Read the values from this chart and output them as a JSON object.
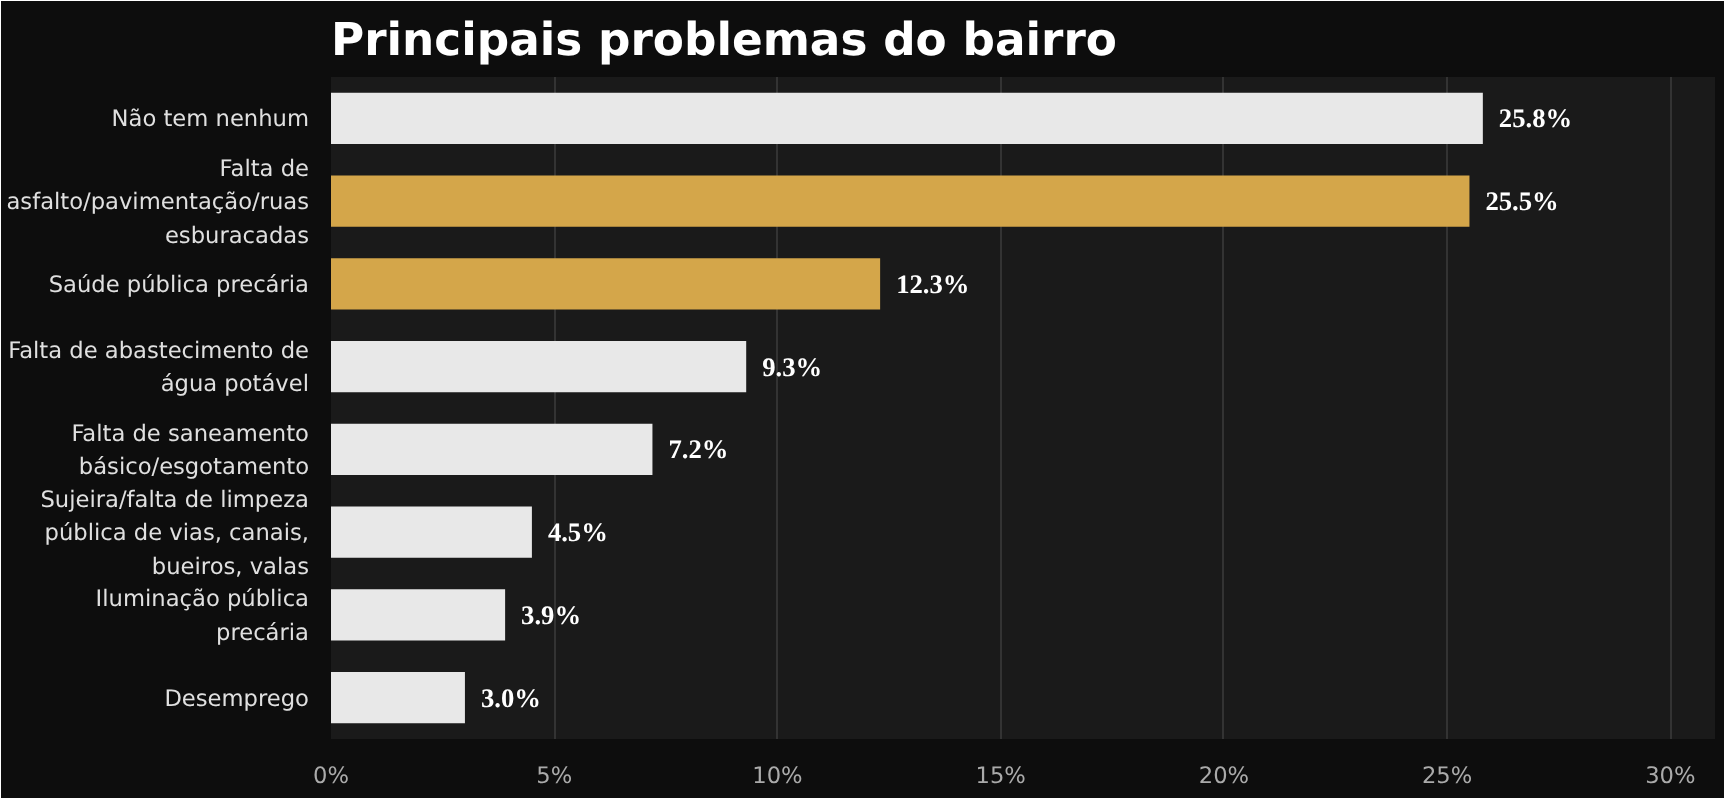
{
  "chart_data": {
    "type": "bar",
    "orientation": "horizontal",
    "title": "Principais problemas do bairro",
    "categories": [
      "Não tem nenhum",
      "Falta de asfalto/pavimentação/ruas esburacadas",
      "Saúde pública precária",
      "Falta de abastecimento de água potável",
      "Falta de saneamento básico/esgotamento",
      "Sujeira/falta de limpeza pública de vias, canais, bueiros, valas",
      "Iluminação pública precária",
      "Desemprego"
    ],
    "values": [
      25.8,
      25.5,
      12.3,
      9.3,
      7.2,
      4.5,
      3.9,
      3.0
    ],
    "colors": [
      "#e8e8e8",
      "#d4a64a",
      "#d4a64a",
      "#e8e8e8",
      "#e8e8e8",
      "#e8e8e8",
      "#e8e8e8",
      "#e8e8e8"
    ],
    "value_labels": [
      "25.8%",
      "25.5%",
      "12.3%",
      "9.3%",
      "7.2%",
      "4.5%",
      "3.9%",
      "3.0%"
    ],
    "xlim": [
      0,
      31
    ],
    "xticks": [
      {
        "value": 0,
        "label": "0%"
      },
      {
        "value": 5,
        "label": "5%"
      },
      {
        "value": 10,
        "label": "10%"
      },
      {
        "value": 15,
        "label": "15%"
      },
      {
        "value": 20,
        "label": "20%"
      },
      {
        "value": 25,
        "label": "25%"
      },
      {
        "value": 30,
        "label": "30%"
      }
    ],
    "grid": "x"
  }
}
